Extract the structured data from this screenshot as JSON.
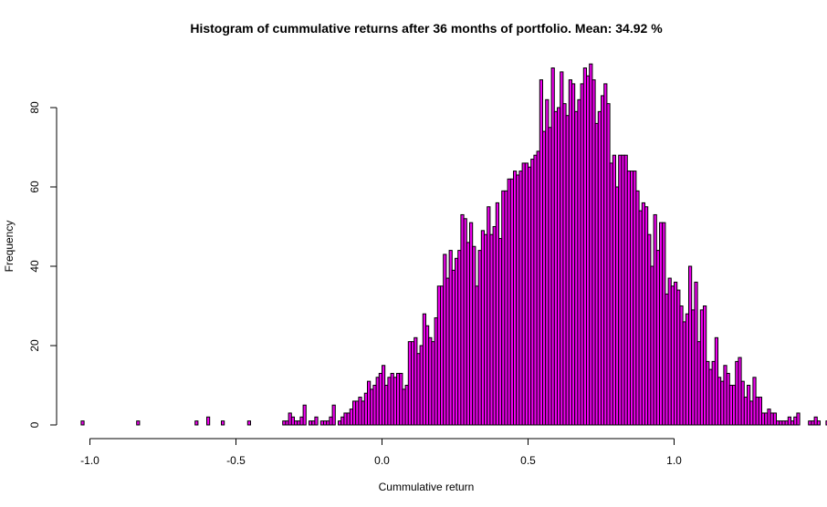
{
  "chart_data": {
    "type": "bar",
    "title": "Histogram of cummulative returns after 36 months of portfolio. Mean: 34.92 %",
    "xlabel": "Cummulative return",
    "ylabel": "Frequency",
    "xlim": [
      -1.05,
      1.35
    ],
    "ylim": [
      0,
      90
    ],
    "x_ticks": [
      -1.0,
      -0.5,
      0.0,
      0.5,
      1.0
    ],
    "x_tick_labels": [
      "-1.0",
      "-0.5",
      "0.0",
      "0.5",
      "1.0"
    ],
    "y_ticks": [
      0,
      20,
      40,
      60,
      80
    ],
    "y_tick_labels": [
      "0",
      "20",
      "40",
      "60",
      "80"
    ],
    "bar_color": "#ee00ee",
    "bin_width": 0.01,
    "bins_start": -1.03,
    "values": [
      1,
      0,
      0,
      0,
      0,
      0,
      0,
      0,
      0,
      0,
      0,
      0,
      0,
      0,
      0,
      0,
      0,
      0,
      0,
      1,
      0,
      0,
      0,
      0,
      0,
      0,
      0,
      0,
      0,
      0,
      0,
      0,
      0,
      0,
      0,
      0,
      0,
      0,
      0,
      1,
      0,
      0,
      0,
      2,
      0,
      0,
      0,
      0,
      1,
      0,
      0,
      0,
      0,
      0,
      0,
      0,
      0,
      1,
      0,
      0,
      0,
      0,
      0,
      0,
      0,
      0,
      0,
      0,
      0,
      1,
      1,
      3,
      2,
      1,
      1,
      2,
      5,
      0,
      1,
      1,
      2,
      0,
      1,
      1,
      1,
      2,
      5,
      0,
      1,
      2,
      3,
      3,
      4,
      6,
      6,
      7,
      6,
      8,
      11,
      9,
      10,
      12,
      13,
      15,
      10,
      12,
      13,
      12,
      13,
      13,
      9,
      10,
      21,
      21,
      22,
      18,
      20,
      28,
      25,
      22,
      21,
      27,
      35,
      35,
      43,
      37,
      44,
      39,
      42,
      44,
      53,
      52,
      46,
      51,
      45,
      35,
      44,
      49,
      48,
      55,
      48,
      50,
      56,
      47,
      59,
      59,
      62,
      62,
      64,
      63,
      64,
      66,
      66,
      65,
      67,
      68,
      69,
      87,
      74,
      82,
      75,
      90,
      79,
      80,
      89,
      81,
      78,
      87,
      86,
      79,
      82,
      86,
      90,
      88,
      91,
      87,
      76,
      79,
      83,
      86,
      81,
      66,
      68,
      60,
      68,
      68,
      68,
      64,
      64,
      64,
      59,
      54,
      56,
      55,
      48,
      40,
      53,
      44,
      51,
      51,
      33,
      37,
      35,
      36,
      34,
      30,
      26,
      28,
      40,
      29,
      36,
      21,
      29,
      30,
      16,
      14,
      16,
      22,
      12,
      11,
      15,
      13,
      10,
      10,
      16,
      17,
      11,
      7,
      10,
      6,
      12,
      7,
      7,
      3,
      3,
      4,
      3,
      3,
      1,
      1,
      1,
      1,
      2,
      1,
      2,
      3,
      0,
      0,
      0,
      1,
      1,
      2,
      1,
      0,
      0,
      1,
      0,
      0,
      0,
      0,
      0,
      0,
      0,
      0,
      0,
      1
    ]
  }
}
